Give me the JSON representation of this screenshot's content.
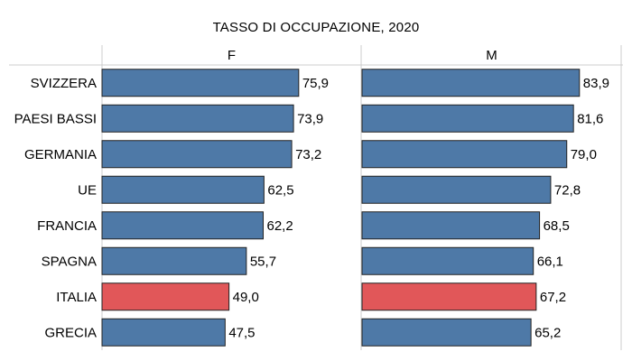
{
  "chart_data": {
    "type": "bar",
    "orientation": "horizontal",
    "title": "TASSO DI OCCUPAZIONE, 2020",
    "categories": [
      "SVIZZERA",
      "PAESI BASSI",
      "GERMANIA",
      "UE",
      "FRANCIA",
      "SPAGNA",
      "ITALIA",
      "GRECIA"
    ],
    "panels": [
      {
        "name": "F",
        "values": [
          75.9,
          73.9,
          73.2,
          62.5,
          62.2,
          55.7,
          49.0,
          47.5
        ],
        "labels": [
          "75,9",
          "73,9",
          "73,2",
          "62,5",
          "62,2",
          "55,7",
          "49,0",
          "47,5"
        ]
      },
      {
        "name": "M",
        "values": [
          83.9,
          81.6,
          79.0,
          72.8,
          68.5,
          66.1,
          67.2,
          65.2
        ],
        "labels": [
          "83,9",
          "81,6",
          "79,0",
          "72,8",
          "68,5",
          "66,1",
          "67,2",
          "65,2"
        ]
      }
    ],
    "highlight_category": "ITALIA",
    "xlim": [
      0,
      100
    ],
    "grid": false,
    "legend": "none"
  },
  "colors": {
    "bar": "#4e79a7",
    "highlight": "#e15759",
    "bar_stroke": "#222222",
    "divider": "#cccccc"
  }
}
